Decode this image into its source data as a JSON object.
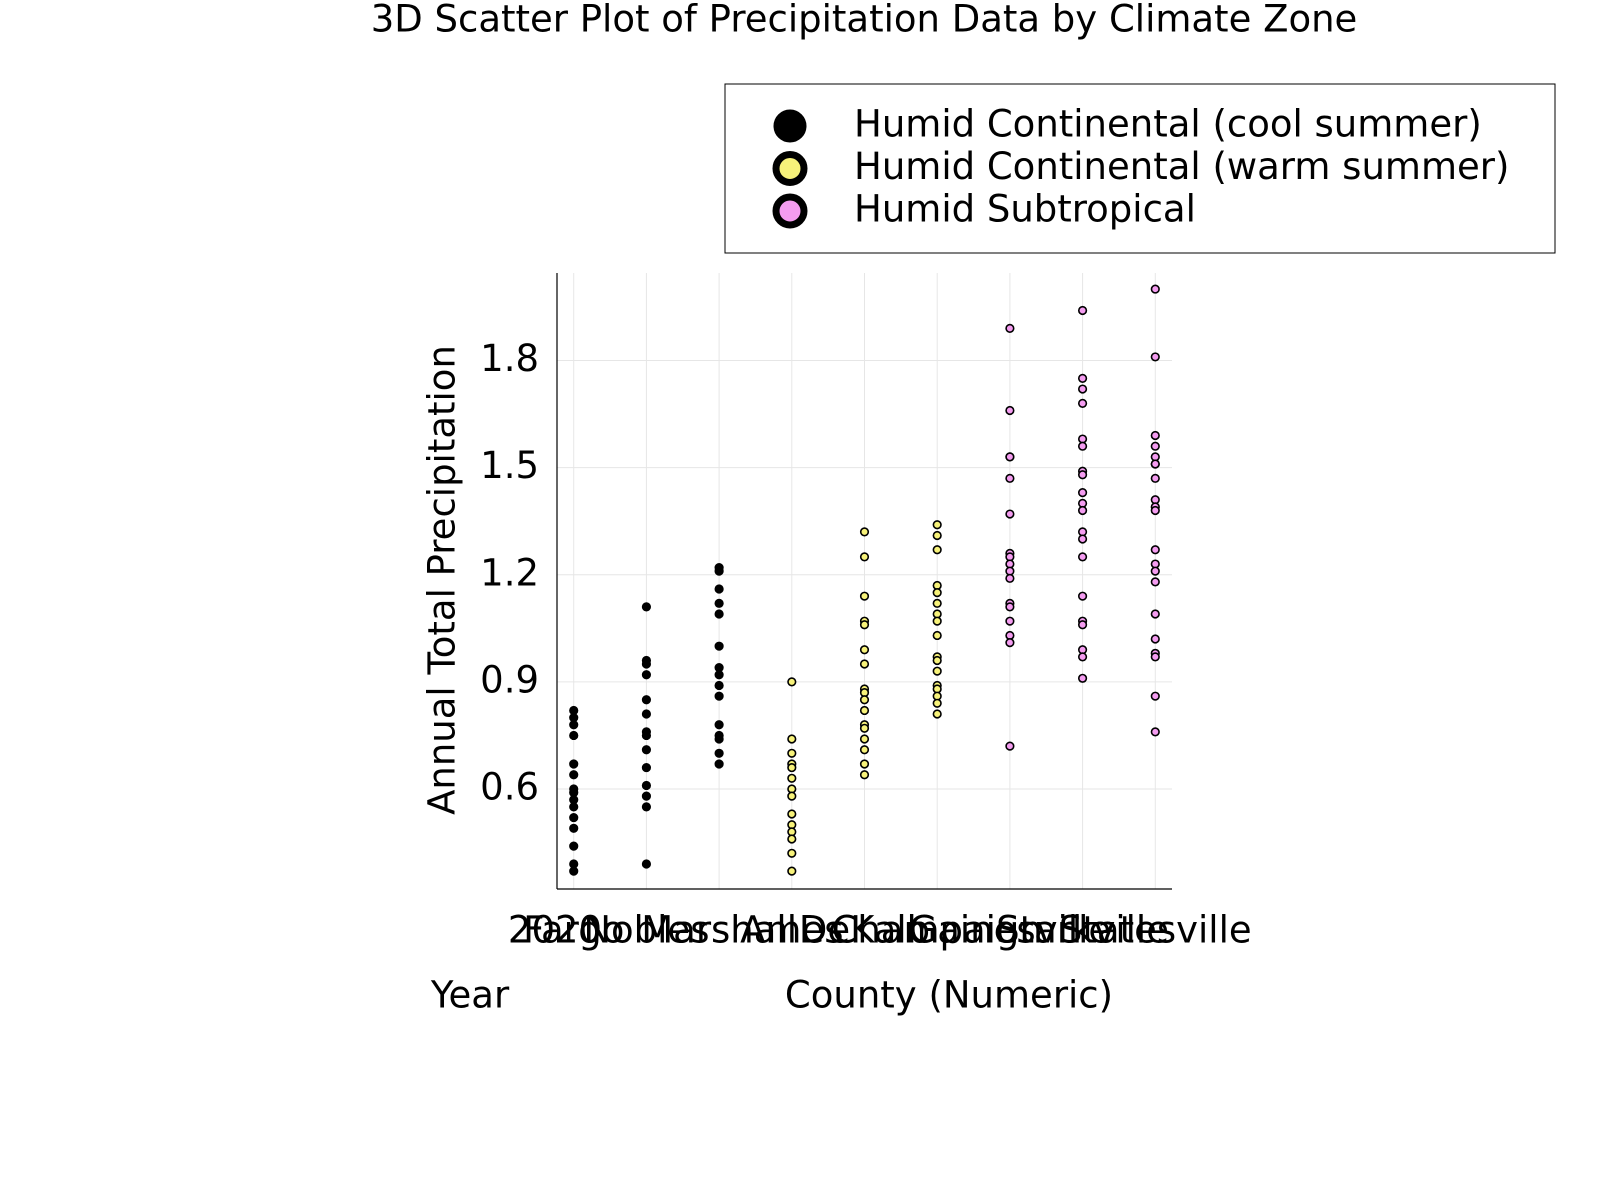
{
  "chart_data": {
    "type": "scatter",
    "title": "3D Scatter Plot of Precipitation Data by Climate Zone",
    "xlabel": "County (Numeric)",
    "ylabel": "Annual Total Precipitation",
    "zlabel": "Year",
    "zticks": [
      2020
    ],
    "xlim": [
      0.77,
      9.23
    ],
    "ylim": [
      0.32,
      2.045
    ],
    "xticks": [
      {
        "value": 1,
        "label": "Fargo"
      },
      {
        "value": 2,
        "label": "Nobles"
      },
      {
        "value": 3,
        "label": "Marshall"
      },
      {
        "value": 4,
        "label": "Ames"
      },
      {
        "value": 5,
        "label": "DeKalb"
      },
      {
        "value": 6,
        "label": "Champaign"
      },
      {
        "value": 7,
        "label": "Gainesville"
      },
      {
        "value": 8,
        "label": "Starkville"
      },
      {
        "value": 9,
        "label": "Statesville"
      }
    ],
    "yticks": [
      0.6,
      0.9,
      1.2,
      1.5,
      1.8
    ],
    "grid": true,
    "legend": "top-right",
    "series": [
      {
        "name": "Humid Continental (cool summer)",
        "color": "#000000",
        "x": [
          1,
          1,
          1,
          1,
          1,
          1,
          1,
          1,
          1,
          1,
          1,
          1,
          1,
          1,
          1,
          2,
          2,
          2,
          2,
          2,
          2,
          2,
          2,
          2,
          2,
          2,
          2,
          2,
          2,
          3,
          3,
          3,
          3,
          3,
          3,
          3,
          3,
          3,
          3,
          3,
          3,
          3,
          3,
          3
        ],
        "values": [
          0.82,
          0.8,
          0.78,
          0.75,
          0.67,
          0.64,
          0.6,
          0.59,
          0.57,
          0.55,
          0.52,
          0.49,
          0.44,
          0.39,
          0.37,
          1.11,
          0.96,
          0.95,
          0.92,
          0.85,
          0.81,
          0.76,
          0.75,
          0.71,
          0.66,
          0.61,
          0.58,
          0.55,
          0.39,
          1.22,
          1.21,
          1.16,
          1.12,
          1.09,
          1.0,
          0.94,
          0.92,
          0.89,
          0.86,
          0.78,
          0.75,
          0.74,
          0.7,
          0.67
        ]
      },
      {
        "name": "Humid Continental (warm summer)",
        "color": "#f7f27a",
        "x": [
          4,
          4,
          4,
          4,
          4,
          4,
          4,
          4,
          4,
          4,
          4,
          4,
          4,
          4,
          5,
          5,
          5,
          5,
          5,
          5,
          5,
          5,
          5,
          5,
          5,
          5,
          5,
          5,
          5,
          5,
          5,
          6,
          6,
          6,
          6,
          6,
          6,
          6,
          6,
          6,
          6,
          6,
          6,
          6,
          6,
          6,
          6,
          6
        ],
        "values": [
          0.9,
          0.74,
          0.7,
          0.67,
          0.66,
          0.63,
          0.6,
          0.58,
          0.53,
          0.5,
          0.48,
          0.46,
          0.42,
          0.37,
          1.32,
          1.25,
          1.14,
          1.07,
          1.06,
          0.99,
          0.95,
          0.88,
          0.87,
          0.85,
          0.82,
          0.78,
          0.77,
          0.74,
          0.71,
          0.67,
          0.64,
          1.34,
          1.31,
          1.27,
          1.17,
          1.15,
          1.12,
          1.09,
          1.07,
          1.03,
          0.97,
          0.96,
          0.93,
          0.89,
          0.88,
          0.86,
          0.84,
          0.81
        ]
      },
      {
        "name": "Humid Subtropical",
        "color": "#f49cf0",
        "x": [
          7,
          7,
          7,
          7,
          7,
          7,
          7,
          7,
          7,
          7,
          7,
          7,
          7,
          7,
          7,
          7,
          7,
          8,
          8,
          8,
          8,
          8,
          8,
          8,
          8,
          8,
          8,
          8,
          8,
          8,
          8,
          8,
          8,
          8,
          8,
          8,
          8,
          9,
          9,
          9,
          9,
          9,
          9,
          9,
          9,
          9,
          9,
          9,
          9,
          9,
          9,
          9,
          9,
          9,
          9,
          9,
          9,
          9
        ],
        "values": [
          1.89,
          1.66,
          1.53,
          1.53,
          1.47,
          1.37,
          1.26,
          1.25,
          1.23,
          1.21,
          1.19,
          1.12,
          1.11,
          1.07,
          1.03,
          1.01,
          0.72,
          1.94,
          1.75,
          1.72,
          1.68,
          1.58,
          1.56,
          1.49,
          1.48,
          1.43,
          1.4,
          1.38,
          1.32,
          1.3,
          1.25,
          1.14,
          1.07,
          1.06,
          0.99,
          0.97,
          0.91,
          2.0,
          1.81,
          1.59,
          1.56,
          1.53,
          1.51,
          1.51,
          1.47,
          1.41,
          1.39,
          1.38,
          1.27,
          1.23,
          1.21,
          1.18,
          1.09,
          1.02,
          0.98,
          0.97,
          0.86,
          0.76
        ]
      }
    ]
  }
}
